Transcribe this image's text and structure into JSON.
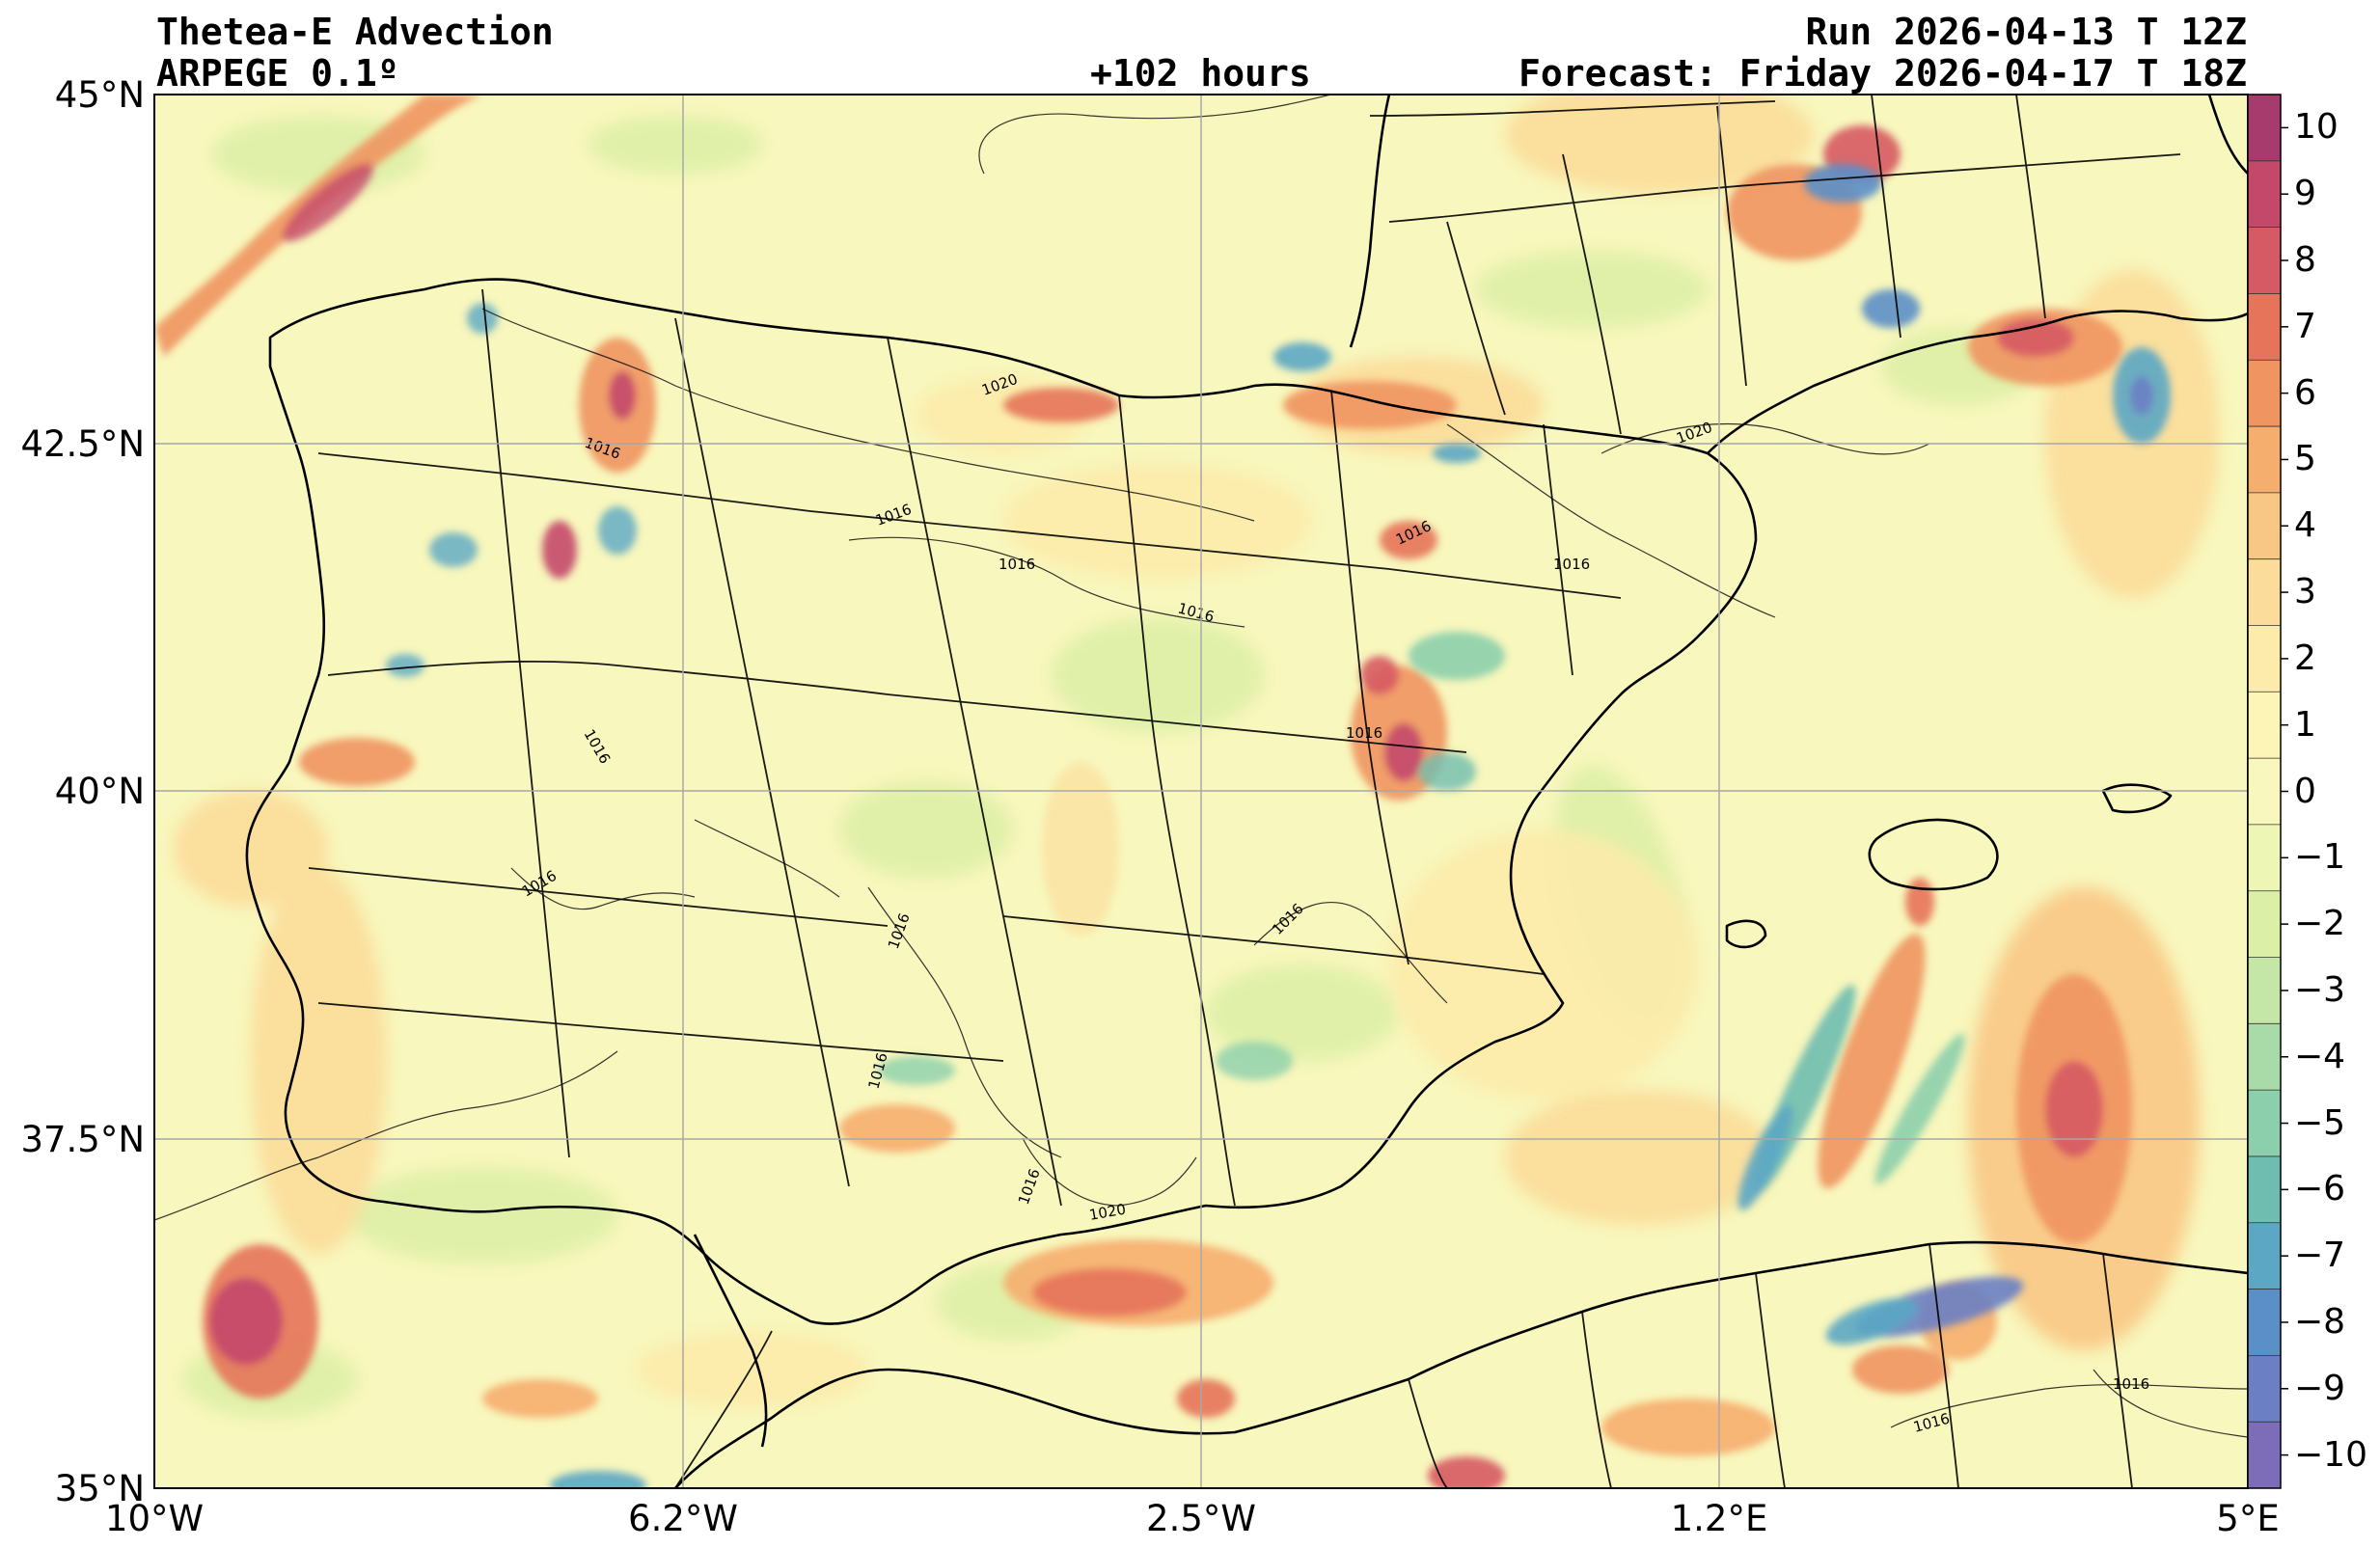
{
  "header": {
    "title": "Thetea-E Advection",
    "model": "ARPEGE 0.1º",
    "lead": "+102 hours",
    "run": "Run 2026-04-13 T 12Z",
    "forecast": "Forecast: Friday 2026-04-17 T 18Z"
  },
  "axes": {
    "lat_labels": [
      "45°N",
      "42.5°N",
      "40°N",
      "37.5°N",
      "35°N"
    ],
    "lon_labels": [
      "10°W",
      "6.2°W",
      "2.5°W",
      "1.2°E",
      "5°E"
    ]
  },
  "colorbar": {
    "labels": [
      "10",
      "9",
      "8",
      "7",
      "6",
      "5",
      "4",
      "3",
      "2",
      "1",
      "0",
      "−1",
      "−2",
      "−3",
      "−4",
      "−5",
      "−6",
      "−7",
      "−8",
      "−9",
      "−10"
    ],
    "colors": [
      "#a83b6e",
      "#c4486a",
      "#d65a63",
      "#e6745a",
      "#f09461",
      "#f6ae6e",
      "#f9c785",
      "#fbdc9a",
      "#fcebaa",
      "#fdf5b8",
      "#f8f7bd",
      "#eef6b5",
      "#dcefa6",
      "#c4e6a6",
      "#a8dba8",
      "#8ccfac",
      "#6fbdb0",
      "#5ba7c4",
      "#5b8fc8",
      "#6a7fc4",
      "#7d6db8"
    ]
  },
  "isobar_labels": [
    "1016",
    "1020"
  ],
  "colors": {
    "background": "#f8f7bd",
    "gridline": "#a8a8a8",
    "coast": "#000000"
  }
}
